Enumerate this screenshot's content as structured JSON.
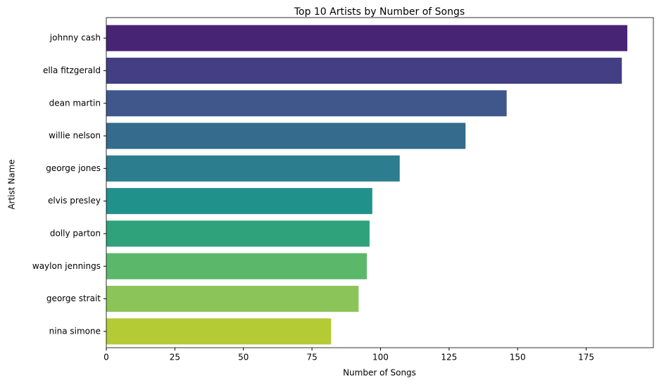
{
  "chart_data": {
    "type": "barh",
    "title": "Top 10 Artists by Number of Songs",
    "xlabel": "Number of Songs",
    "ylabel": "Artist Name",
    "categories": [
      "johnny cash",
      "ella fitzgerald",
      "dean martin",
      "willie nelson",
      "george jones",
      "elvis presley",
      "dolly parton",
      "waylon jennings",
      "george strait",
      "nina simone"
    ],
    "values": [
      190,
      188,
      146,
      131,
      107,
      97,
      96,
      95,
      92,
      82
    ],
    "colors": [
      "#482475",
      "#443f84",
      "#3f578b",
      "#356b8c",
      "#2c7e8e",
      "#21918c",
      "#2fa27b",
      "#5bb86b",
      "#8bc559",
      "#b4cb35"
    ],
    "xlim": [
      0,
      199.5
    ],
    "xticks": [
      0,
      25,
      50,
      75,
      100,
      125,
      150,
      175
    ]
  }
}
